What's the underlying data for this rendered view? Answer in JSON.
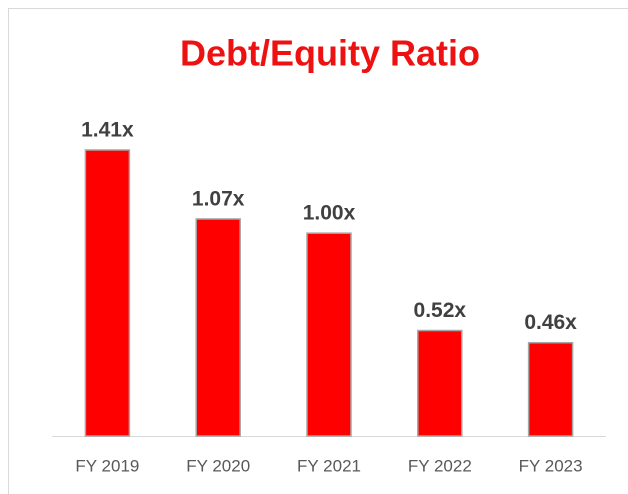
{
  "chart_data": {
    "type": "bar",
    "title": "Debt/Equity Ratio",
    "categories": [
      "FY 2019",
      "FY 2020",
      "FY 2021",
      "FY 2022",
      "FY 2023"
    ],
    "values": [
      1.41,
      1.07,
      1.0,
      0.52,
      0.46
    ],
    "value_labels": [
      "1.41x",
      "1.07x",
      "1.00x",
      "0.52x",
      "0.46x"
    ],
    "color": "#ff0000"
  }
}
